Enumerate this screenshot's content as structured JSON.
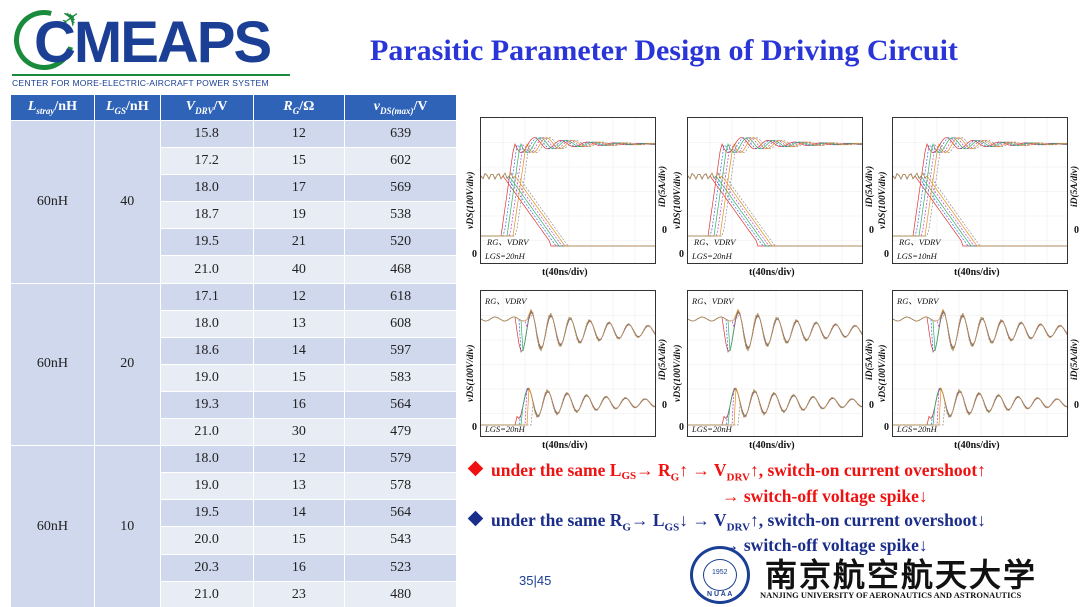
{
  "header": {
    "logo_text": "CMEAPS",
    "logo_tagline": "CENTER FOR  MORE-ELECTRIC-AIRCRAFT POWER SYSTEM",
    "title": "Parasitic Parameter Design of Driving Circuit"
  },
  "table": {
    "headers": [
      {
        "main": "L",
        "sub": "stray",
        "unit": "/nH"
      },
      {
        "main": "L",
        "sub": "GS",
        "unit": "/nH"
      },
      {
        "main": "V",
        "sub": "DRV",
        "unit": "/V"
      },
      {
        "main": "R",
        "sub": "G",
        "unit": "/Ω"
      },
      {
        "main": "v",
        "sub": "DS(max)",
        "unit": "/V"
      }
    ],
    "groups": [
      {
        "lstray": "60nH",
        "lgs": "40",
        "rows": [
          [
            "15.8",
            "12",
            "639"
          ],
          [
            "17.2",
            "15",
            "602"
          ],
          [
            "18.0",
            "17",
            "569"
          ],
          [
            "18.7",
            "19",
            "538"
          ],
          [
            "19.5",
            "21",
            "520"
          ],
          [
            "21.0",
            "40",
            "468"
          ]
        ]
      },
      {
        "lstray": "60nH",
        "lgs": "20",
        "rows": [
          [
            "17.1",
            "12",
            "618"
          ],
          [
            "18.0",
            "13",
            "608"
          ],
          [
            "18.6",
            "14",
            "597"
          ],
          [
            "19.0",
            "15",
            "583"
          ],
          [
            "19.3",
            "16",
            "564"
          ],
          [
            "21.0",
            "30",
            "479"
          ]
        ]
      },
      {
        "lstray": "60nH",
        "lgs": "10",
        "rows": [
          [
            "18.0",
            "12",
            "579"
          ],
          [
            "19.0",
            "13",
            "578"
          ],
          [
            "19.5",
            "14",
            "564"
          ],
          [
            "20.0",
            "15",
            "543"
          ],
          [
            "20.3",
            "16",
            "523"
          ],
          [
            "21.0",
            "23",
            "480"
          ]
        ]
      }
    ]
  },
  "panels": {
    "xlabel": "t(40ns/div)",
    "ylabel_left": "vDS(100V/div)",
    "ylabel_right": "iD(5A/div)",
    "zero": "0",
    "annotation": "RG、VDRV",
    "top_lgs": [
      "LGS=20nH",
      "LGS=20nH",
      "LGS=10nH"
    ],
    "bottom_lgs": [
      "LGS=20nH",
      "LGS=20nH",
      "LGS=20nH"
    ]
  },
  "bullets": {
    "red_line1": "under the same L",
    "red_line1_sub": "GS",
    "red_line1_rest": "→ R",
    "red_line1_rsub": "G",
    "red_line1_tail": "↑ → V",
    "red_line1_vsub": "DRV",
    "red_line1_end": "↑, switch-on current overshoot↑",
    "red_line2": "→ switch-off voltage spike↓",
    "blue_line1": "under the same R",
    "blue_line1_sub": "G",
    "blue_line1_rest": "→ L",
    "blue_line1_lsub": "GS",
    "blue_line1_tail": "↓ → V",
    "blue_line1_vsub": "DRV",
    "blue_line1_end": "↑, switch-on current overshoot↓",
    "blue_line2": "→ switch-off voltage spike↓"
  },
  "footer": {
    "page": "35|45",
    "university_cn": "南京航空航天大学",
    "university_en": "NANJING UNIVERSITY OF AERONAUTICS AND ASTRONAUTICS",
    "seal_year": "1952",
    "seal_text": "N U A A"
  },
  "colors": {
    "title": "#2a35d8",
    "table_header": "#2f63b8",
    "row_dark": "#cfd8ec",
    "row_light": "#e8ecf5",
    "bullet_red": "#ef1010",
    "bullet_blue": "#1a2d8a"
  }
}
